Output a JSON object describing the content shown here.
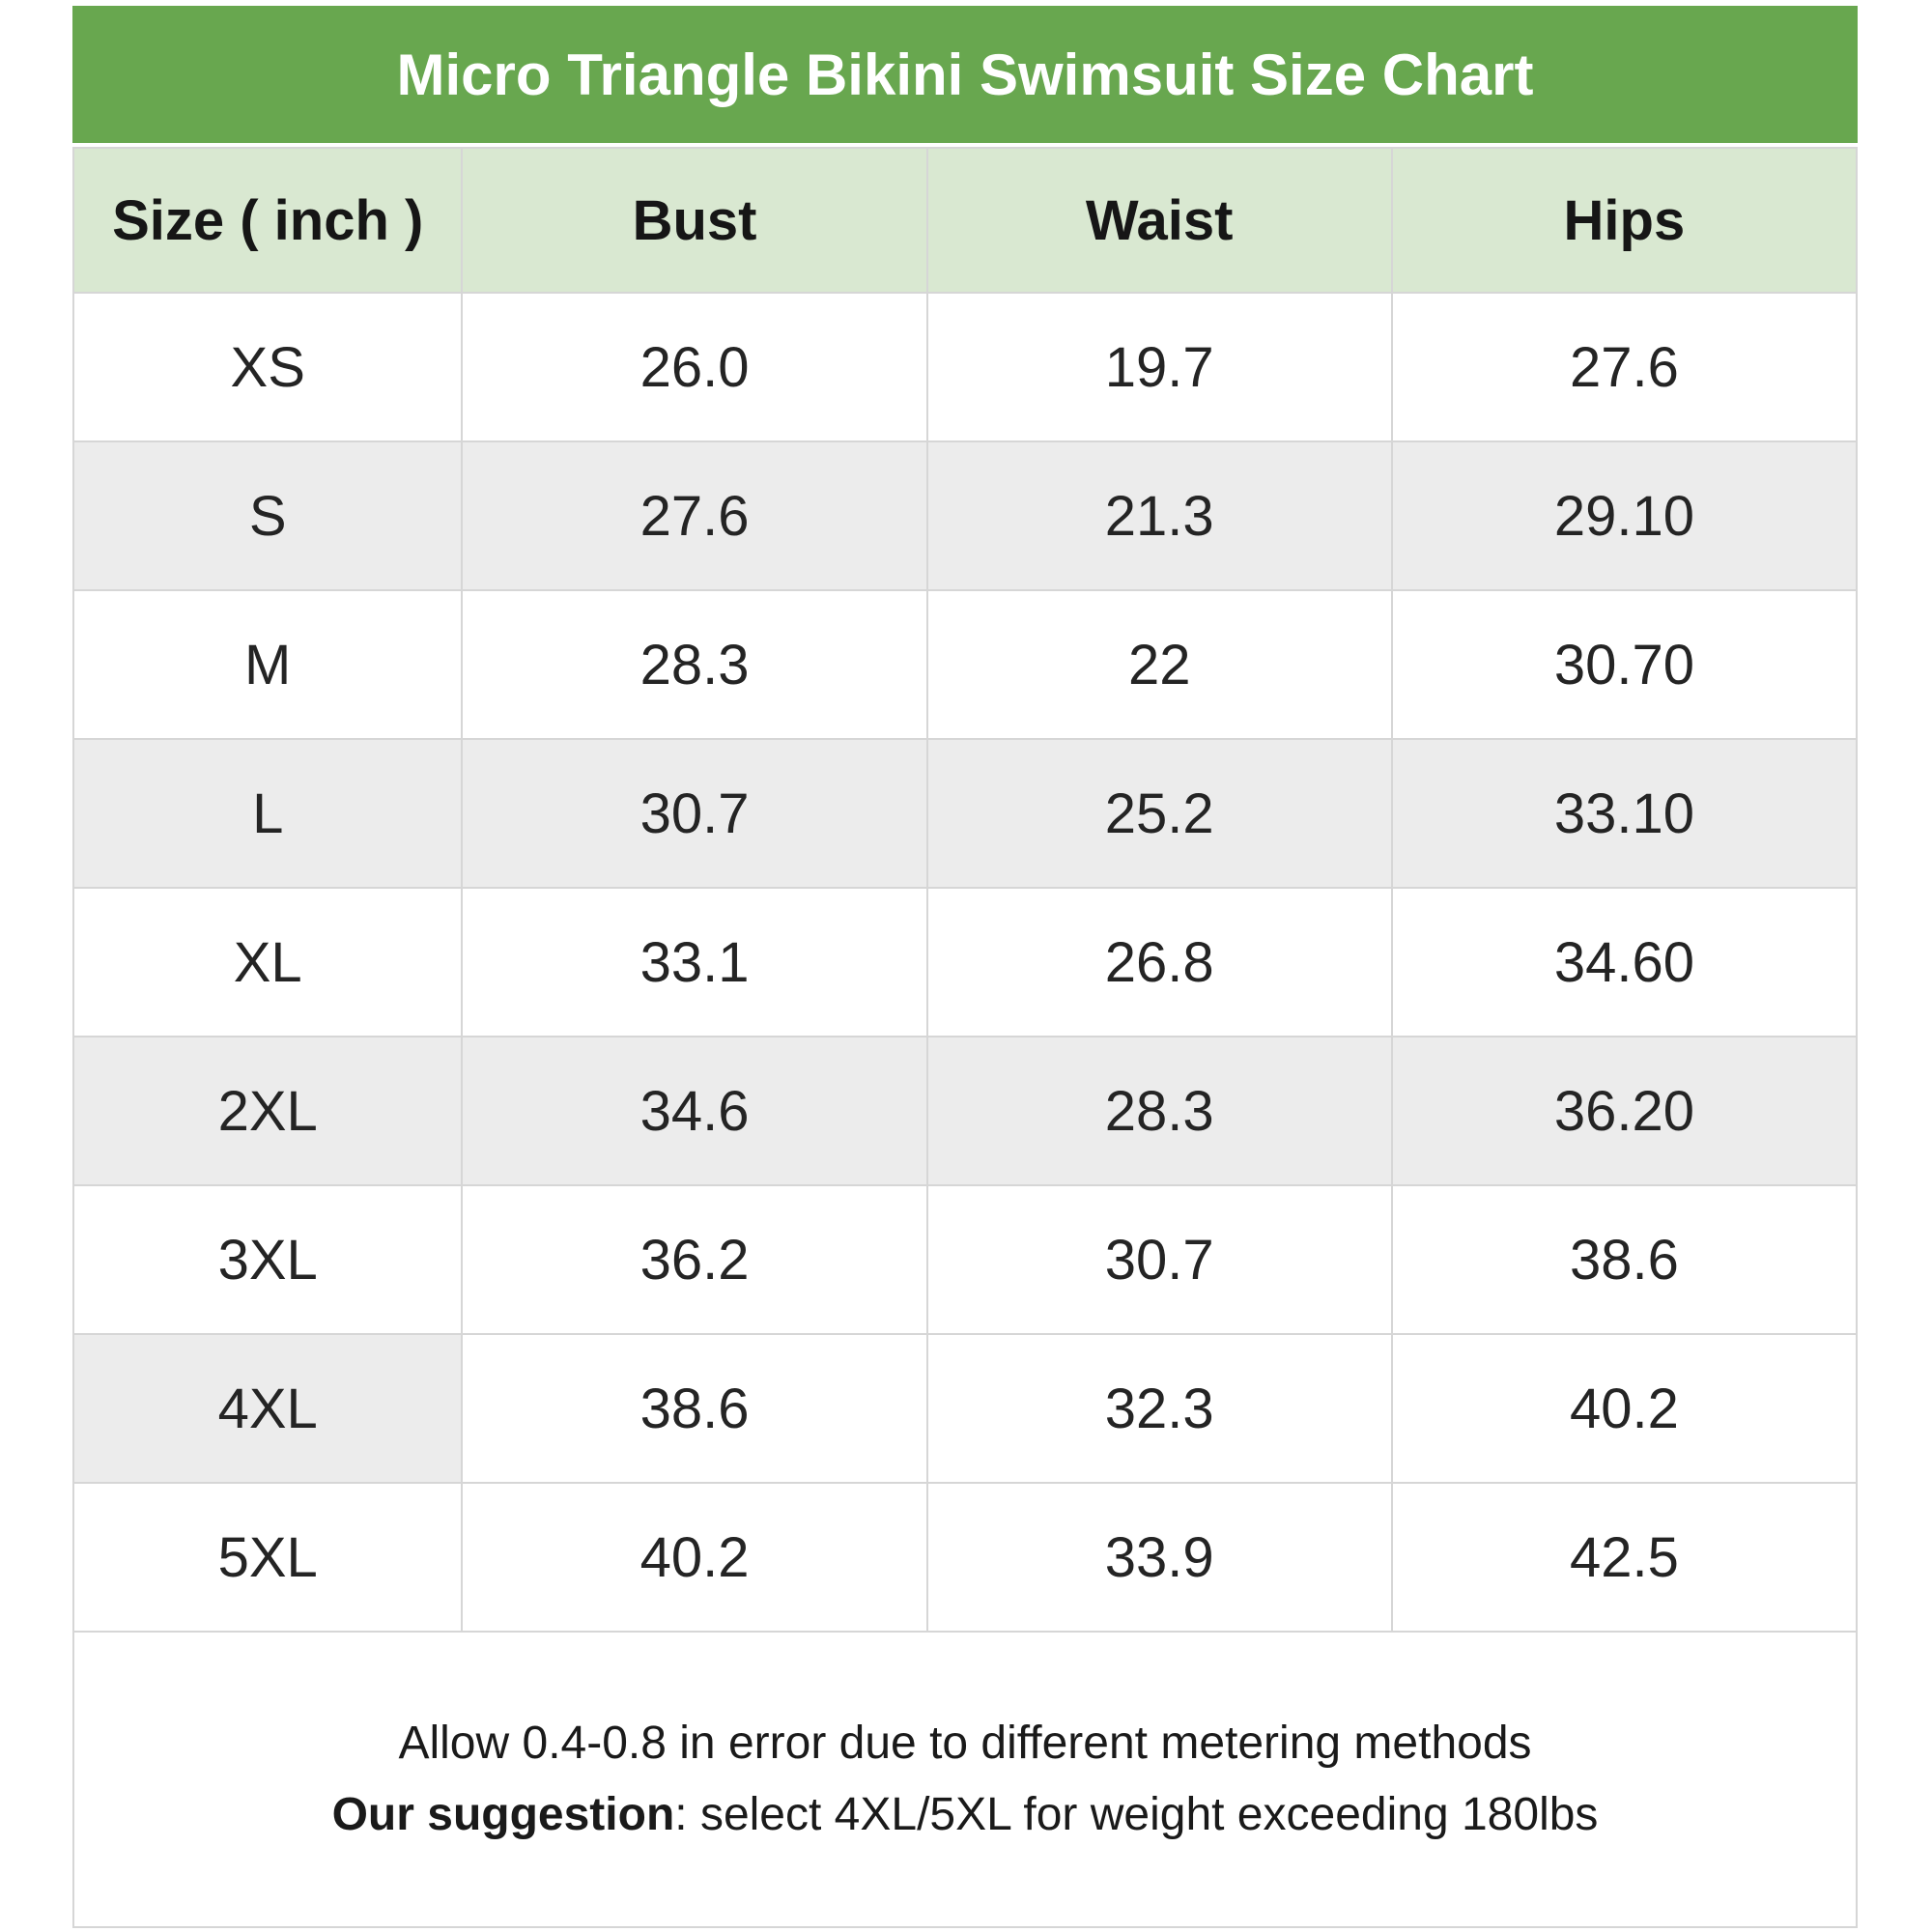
{
  "header": {
    "title": "Micro Triangle Bikini Swimsuit Size Chart"
  },
  "chart_data": {
    "type": "table",
    "title": "Micro Triangle Bikini Swimsuit Size Chart",
    "unit": "inch",
    "columns": [
      "Size ( inch )",
      "Bust",
      "Waist",
      "Hips"
    ],
    "rows": [
      {
        "size": "XS",
        "bust": "26.0",
        "waist": "19.7",
        "hips": "27.6"
      },
      {
        "size": "S",
        "bust": "27.6",
        "waist": "21.3",
        "hips": "29.10"
      },
      {
        "size": "M",
        "bust": "28.3",
        "waist": "22",
        "hips": "30.70"
      },
      {
        "size": "L",
        "bust": "30.7",
        "waist": "25.2",
        "hips": "33.10"
      },
      {
        "size": "XL",
        "bust": "33.1",
        "waist": "26.8",
        "hips": "34.60"
      },
      {
        "size": "2XL",
        "bust": "34.6",
        "waist": "28.3",
        "hips": "36.20"
      },
      {
        "size": "3XL",
        "bust": "36.2",
        "waist": "30.7",
        "hips": "38.6"
      },
      {
        "size": "4XL",
        "bust": "38.6",
        "waist": "32.3",
        "hips": "40.2"
      },
      {
        "size": "5XL",
        "bust": "40.2",
        "waist": "33.9",
        "hips": "42.5"
      }
    ],
    "notes": [
      "Allow 0.4-0.8 in error due to different metering methods",
      "Our suggestion: select 4XL/5XL for weight exceeding 180lbs"
    ]
  },
  "footer": {
    "note1": "Allow 0.4-0.8 in error due to different metering methods",
    "suggestion_label": "Our suggestion",
    "suggestion_rest": ": select 4XL/5XL for weight exceeding 180lbs"
  },
  "colors": {
    "title_bar_green": "#68a74f",
    "header_row_green": "#d9e8d1",
    "row_stripe_gray": "#ececec",
    "border_gray": "#d6d6d6",
    "title_text": "#ffffff",
    "body_text": "#1e1e1e"
  }
}
